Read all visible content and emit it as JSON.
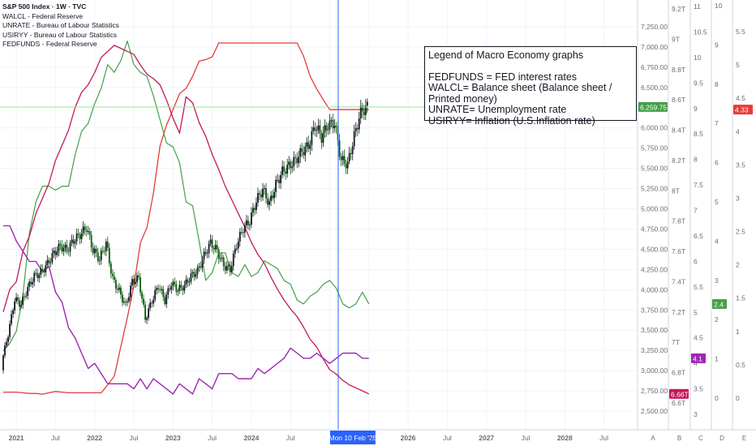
{
  "header": {
    "symbol_line": "S&P 500 Index · 1W · TVC",
    "series_lines": [
      "WALCL - Federal Reserve",
      "UNRATE - Bureau of Labour Statistics",
      "USIRYY - Bureau of Labour Statistics",
      "FEDFUNDS - Federal Reserve"
    ]
  },
  "legend": {
    "title": "Legend of Macro Economy graphs",
    "lines": [
      "FEDFUNDS = FED interest rates",
      "WALCL= Balance sheet (Balance sheet / Printed money)",
      "UNRATE= Unemployment rate",
      "USIRYY= Inflation (U.S.Inflation rate)"
    ]
  },
  "colors": {
    "spx_up": "#131722",
    "spx_down": "#0b5e0b",
    "fedfunds": "#e83a3a",
    "walcl": "#c2185b",
    "unrate": "#9c27b0",
    "usiryy": "#43a047",
    "crosshair": "#2962ff",
    "last_price_line": "#a5e8a0",
    "grid": "#f0f3fa",
    "axis_text": "#6a6d78"
  },
  "chart_data": {
    "type": "line",
    "crosshair_label": "Mon 10 Feb '25",
    "x_ticks": [
      "2021",
      "Jul",
      "2022",
      "Jul",
      "2023",
      "Jul",
      "2024",
      "Jul",
      "Mon 10 Feb '25",
      "Jul",
      "2026",
      "Jul",
      "2027",
      "Jul",
      "2028",
      "Jul"
    ],
    "x_bold": [
      "2021",
      "2022",
      "2023",
      "2024",
      "2026",
      "2027",
      "2028"
    ],
    "axes": {
      "spx": {
        "ticks": [
          "7,250.00",
          "7,000.00",
          "6,750.00",
          "6,500.00",
          "6,250.00",
          "6,000.00",
          "5,750.00",
          "5,500.00",
          "5,250.00",
          "5,000.00",
          "4,750.00",
          "4,500.00",
          "4,250.00",
          "4,000.00",
          "3,750.00",
          "3,500.00",
          "3,250.00",
          "3,000.00",
          "2,750.00",
          "2,500.00"
        ],
        "last": "6,259.75",
        "letter": "A"
      },
      "walcl": {
        "ticks": [
          "9.2T",
          "9T",
          "8.8T",
          "8.6T",
          "8.4T",
          "8.2T",
          "8T",
          "7.8T",
          "7.6T",
          "7.4T",
          "7.2T",
          "7T",
          "6.8T",
          "6.6T"
        ],
        "last": "6.66T",
        "letter": "B"
      },
      "unrate": {
        "ticks": [
          "11",
          "10.5",
          "10",
          "9.5",
          "9",
          "8.5",
          "8",
          "7.5",
          "7",
          "6.5",
          "6",
          "5.5",
          "5",
          "4.5",
          "4",
          "3.5",
          "3"
        ],
        "last": "4.1",
        "letter": "C"
      },
      "usiryy": {
        "ticks": [
          "10",
          "9",
          "8",
          "7",
          "6",
          "5",
          "4",
          "3",
          "2",
          "1",
          "0"
        ],
        "last": "2.4",
        "letter": "D"
      },
      "fedfunds": {
        "ticks": [
          "5.5",
          "5",
          "4.5",
          "4",
          "3.5",
          "3",
          "2.5",
          "2",
          "1.5",
          "1",
          "0.5",
          "0"
        ],
        "last": "4.33",
        "letter": "E"
      }
    },
    "spx": {
      "name": "S&P 500 Index",
      "dates": [
        "2020-11",
        "2020-12",
        "2021-01",
        "2021-02",
        "2021-03",
        "2021-04",
        "2021-05",
        "2021-06",
        "2021-07",
        "2021-08",
        "2021-09",
        "2021-10",
        "2021-11",
        "2021-12",
        "2022-01",
        "2022-02",
        "2022-03",
        "2022-04",
        "2022-05",
        "2022-06",
        "2022-07",
        "2022-08",
        "2022-09",
        "2022-10",
        "2022-11",
        "2022-12",
        "2023-01",
        "2023-02",
        "2023-03",
        "2023-04",
        "2023-05",
        "2023-06",
        "2023-07",
        "2023-08",
        "2023-09",
        "2023-10",
        "2023-11",
        "2023-12",
        "2024-01",
        "2024-02",
        "2024-03",
        "2024-04",
        "2024-05",
        "2024-06",
        "2024-07",
        "2024-08",
        "2024-09",
        "2024-10",
        "2024-11",
        "2024-12",
        "2025-01",
        "2025-02",
        "2025-03",
        "2025-04",
        "2025-05",
        "2025-06",
        "2025-07"
      ],
      "close": [
        3100,
        3450,
        3880,
        3820,
        4020,
        4170,
        4210,
        4320,
        4450,
        4540,
        4490,
        4610,
        4680,
        4770,
        4490,
        4380,
        4580,
        4130,
        3980,
        3800,
        4100,
        4140,
        3640,
        3860,
        4050,
        3870,
        4080,
        4000,
        4050,
        4170,
        4230,
        4420,
        4580,
        4480,
        4300,
        4250,
        4560,
        4760,
        4850,
        5100,
        5240,
        5060,
        5300,
        5460,
        5530,
        5600,
        5710,
        5780,
        6030,
        5890,
        6040,
        6060,
        5600,
        5550,
        5900,
        6200,
        6259.75
      ]
    },
    "walcl": {
      "name": "WALCL",
      "values": [
        7.2,
        7.35,
        7.4,
        7.6,
        7.7,
        7.85,
        7.95,
        8.05,
        8.2,
        8.3,
        8.4,
        8.55,
        8.65,
        8.7,
        8.78,
        8.88,
        8.92,
        8.96,
        8.94,
        8.92,
        8.9,
        8.83,
        8.77,
        8.74,
        8.7,
        8.6,
        8.48,
        8.38,
        8.62,
        8.58,
        8.45,
        8.36,
        8.24,
        8.14,
        8.03,
        7.94,
        7.85,
        7.76,
        7.66,
        7.58,
        7.52,
        7.43,
        7.35,
        7.28,
        7.22,
        7.17,
        7.1,
        7.02,
        6.97,
        6.89,
        6.82,
        6.79,
        6.75,
        6.72,
        6.7,
        6.68,
        6.66
      ]
    },
    "unrate": {
      "name": "UNRATE",
      "values": [
        6.7,
        6.7,
        6.4,
        6.2,
        6.0,
        6.0,
        5.8,
        5.9,
        5.4,
        5.2,
        4.7,
        4.5,
        4.2,
        3.9,
        4.0,
        3.8,
        3.6,
        3.6,
        3.6,
        3.6,
        3.5,
        3.7,
        3.5,
        3.7,
        3.6,
        3.5,
        3.4,
        3.6,
        3.5,
        3.4,
        3.7,
        3.6,
        3.5,
        3.8,
        3.8,
        3.8,
        3.7,
        3.7,
        3.7,
        3.9,
        3.8,
        3.9,
        4.0,
        4.1,
        4.3,
        4.2,
        4.1,
        4.1,
        4.2,
        4.1,
        4.0,
        4.1,
        4.2,
        4.2,
        4.2,
        4.1,
        4.1
      ]
    },
    "usiryy": {
      "name": "USIRYY",
      "values": [
        1.2,
        1.4,
        1.7,
        2.6,
        4.2,
        5.0,
        5.4,
        5.4,
        5.3,
        5.4,
        5.4,
        6.2,
        6.8,
        7.0,
        7.5,
        7.9,
        8.5,
        8.3,
        8.6,
        9.1,
        8.5,
        8.3,
        8.2,
        7.7,
        7.1,
        6.5,
        6.4,
        6.0,
        5.0,
        4.9,
        4.0,
        3.0,
        3.2,
        3.7,
        3.7,
        3.2,
        3.1,
        3.4,
        3.1,
        3.2,
        3.5,
        3.4,
        3.3,
        3.0,
        2.9,
        2.5,
        2.4,
        2.6,
        2.7,
        2.9,
        3.0,
        2.8,
        2.4,
        2.3,
        2.4,
        2.7,
        2.4
      ]
    },
    "fedfunds": {
      "name": "FEDFUNDS",
      "values": [
        0.09,
        0.09,
        0.09,
        0.08,
        0.07,
        0.07,
        0.06,
        0.08,
        0.1,
        0.09,
        0.08,
        0.08,
        0.08,
        0.08,
        0.08,
        0.08,
        0.2,
        0.33,
        0.77,
        1.21,
        1.68,
        2.33,
        2.56,
        3.08,
        3.78,
        4.1,
        4.33,
        4.57,
        4.65,
        4.83,
        5.06,
        5.08,
        5.12,
        5.33,
        5.33,
        5.33,
        5.33,
        5.33,
        5.33,
        5.33,
        5.33,
        5.33,
        5.33,
        5.33,
        5.33,
        5.33,
        5.13,
        4.83,
        4.64,
        4.48,
        4.33,
        4.33,
        4.33,
        4.33,
        4.33,
        4.33,
        4.33
      ]
    }
  }
}
